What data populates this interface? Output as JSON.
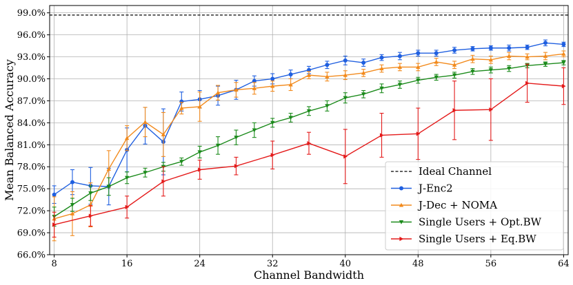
{
  "chart_data": {
    "type": "line",
    "title": "",
    "xlabel": "Channel Bandwidth",
    "ylabel": "Mean Balanced Accuracy",
    "xlim": [
      7.5,
      64.5
    ],
    "ylim": [
      66.0,
      100.0
    ],
    "xticks": [
      8,
      16,
      24,
      32,
      40,
      48,
      56,
      64
    ],
    "yticks": [
      66.0,
      69.0,
      72.0,
      75.0,
      78.0,
      81.0,
      84.0,
      87.0,
      90.0,
      93.0,
      96.0,
      99.0
    ],
    "ytick_format": "percent_1dp",
    "grid": true,
    "legend_position": "lower-right",
    "reference_line": {
      "name": "Ideal Channel",
      "y": 98.7,
      "color": "#000000",
      "style": "dashed"
    },
    "series": [
      {
        "name": "J-Enc2",
        "color": "#1f5fe0",
        "marker": "circle",
        "x": [
          8,
          10,
          12,
          14,
          16,
          18,
          20,
          22,
          24,
          26,
          28,
          30,
          32,
          34,
          36,
          38,
          40,
          42,
          44,
          46,
          48,
          50,
          52,
          54,
          56,
          58,
          60,
          62,
          64
        ],
        "y": [
          74.2,
          75.9,
          75.4,
          75.3,
          80.3,
          83.6,
          81.4,
          86.9,
          87.2,
          87.7,
          88.5,
          89.7,
          90.0,
          90.6,
          91.2,
          91.9,
          92.5,
          92.2,
          92.9,
          93.1,
          93.5,
          93.5,
          93.9,
          94.1,
          94.2,
          94.2,
          94.3,
          94.9,
          94.7
        ],
        "err": [
          1.2,
          1.7,
          2.5,
          2.5,
          3.0,
          2.5,
          4.5,
          1.3,
          1.2,
          1.3,
          1.3,
          0.7,
          0.7,
          0.6,
          0.5,
          0.5,
          0.6,
          0.5,
          0.4,
          0.5,
          0.4,
          0.4,
          0.4,
          0.3,
          0.3,
          0.4,
          0.3,
          0.4,
          0.3
        ]
      },
      {
        "name": "J-Dec + NOMA",
        "color": "#f28a1c",
        "marker": "triangle-up",
        "x": [
          8,
          10,
          12,
          14,
          16,
          18,
          20,
          22,
          24,
          26,
          28,
          30,
          32,
          34,
          36,
          38,
          40,
          42,
          44,
          46,
          48,
          50,
          52,
          54,
          56,
          58,
          60,
          62,
          64
        ],
        "y": [
          70.9,
          71.6,
          72.8,
          77.7,
          81.9,
          84.1,
          82.4,
          86.0,
          86.2,
          88.1,
          88.5,
          88.7,
          89.0,
          89.2,
          90.5,
          90.3,
          90.5,
          90.8,
          91.4,
          91.6,
          91.6,
          92.3,
          91.9,
          92.7,
          92.6,
          93.1,
          93.0,
          93.1,
          93.4
        ],
        "err": [
          3.0,
          3.0,
          3.0,
          2.5,
          1.7,
          2.0,
          3.0,
          0.8,
          2.0,
          1.0,
          1.0,
          0.8,
          0.7,
          0.8,
          0.5,
          0.6,
          0.6,
          0.5,
          0.5,
          0.5,
          0.5,
          0.5,
          0.5,
          0.5,
          0.5,
          0.5,
          0.4,
          0.5,
          0.4
        ]
      },
      {
        "name": "Single Users + Opt.BW",
        "color": "#1a8a1a",
        "marker": "triangle-down",
        "x": [
          8,
          10,
          12,
          14,
          16,
          18,
          20,
          22,
          24,
          26,
          28,
          30,
          32,
          34,
          36,
          38,
          40,
          42,
          44,
          46,
          48,
          50,
          52,
          54,
          56,
          58,
          60,
          62,
          64
        ],
        "y": [
          71.2,
          72.8,
          74.4,
          75.3,
          76.5,
          77.2,
          78.0,
          78.7,
          80.0,
          80.9,
          82.0,
          83.0,
          84.0,
          84.7,
          85.6,
          86.3,
          87.4,
          87.9,
          88.7,
          89.2,
          89.8,
          90.2,
          90.5,
          91.0,
          91.2,
          91.4,
          91.8,
          92.0,
          92.2
        ],
        "err": [
          1.3,
          0.9,
          1.0,
          1.2,
          0.8,
          0.6,
          0.6,
          0.5,
          0.8,
          1.2,
          1.0,
          1.0,
          0.6,
          0.6,
          0.6,
          0.7,
          0.7,
          0.5,
          0.6,
          0.5,
          0.4,
          0.4,
          0.4,
          0.4,
          0.4,
          0.4,
          0.3,
          0.3,
          0.3
        ]
      },
      {
        "name": "Single Users + Eq.BW",
        "color": "#e41a1a",
        "marker": "triangle-right",
        "x": [
          8,
          12,
          16,
          20,
          24,
          28,
          32,
          36,
          40,
          44,
          48,
          52,
          56,
          60,
          64
        ],
        "y": [
          70.1,
          71.3,
          72.5,
          76.0,
          77.6,
          78.1,
          79.6,
          81.2,
          79.4,
          82.3,
          82.5,
          85.7,
          85.8,
          89.4,
          89.0
        ],
        "err": [
          1.7,
          1.4,
          1.5,
          2.0,
          1.3,
          1.2,
          1.9,
          1.5,
          3.7,
          3.0,
          3.5,
          4.0,
          4.2,
          2.6,
          2.5
        ]
      }
    ]
  }
}
